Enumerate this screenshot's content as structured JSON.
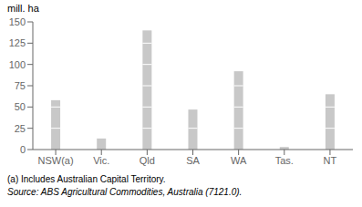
{
  "chart_data": {
    "type": "bar",
    "y_label": "mill. ha",
    "categories": [
      "NSW(a)",
      "Vic.",
      "Qld",
      "SA",
      "WA",
      "Tas.",
      "NT"
    ],
    "values": [
      58,
      13,
      140,
      47,
      92,
      3,
      65
    ],
    "color": "#c8c8c8",
    "ylim": [
      0,
      150
    ],
    "yticks": [
      0,
      25,
      50,
      75,
      100,
      125,
      150
    ],
    "grid": false,
    "notes": [
      "(a) Includes Australian Capital Territory.",
      "Source: ABS Agricultural Commodities, Australia (7121.0)."
    ]
  }
}
